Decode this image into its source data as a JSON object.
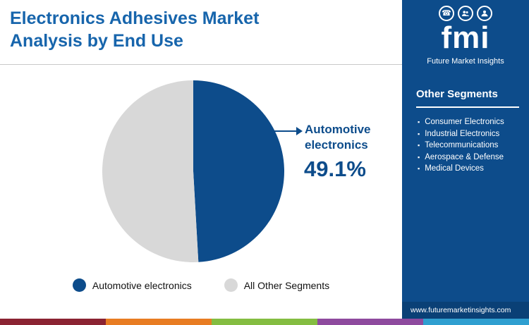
{
  "header": {
    "title": "Electronics Adhesives Market Analysis by End Use"
  },
  "chart_data": {
    "type": "pie",
    "title": "Electronics Adhesives Market Analysis by End Use",
    "slices": [
      {
        "label": "Automotive electronics",
        "value": 49.1,
        "color": "#0d4c8b"
      },
      {
        "label": "All Other Segments",
        "value": 50.9,
        "color": "#d8d8d8"
      }
    ],
    "start_angle_deg": -90,
    "legend_position": "bottom",
    "annotation": {
      "label": "Automotive electronics",
      "value_label": "49.1%"
    }
  },
  "callout": {
    "label": "Automotive electronics",
    "value": "49.1%"
  },
  "legend": [
    {
      "label": "Automotive electronics",
      "color": "#0d4c8b"
    },
    {
      "label": "All Other Segments",
      "color": "#d8d8d8"
    }
  ],
  "sidebar": {
    "logo": {
      "text": "fmi",
      "tagline": "Future Market Insights",
      "icons": [
        "phone-icon",
        "people-icon",
        "person-icon"
      ]
    },
    "section_title": "Other Segments",
    "items": [
      "Consumer Electronics",
      "Industrial Electronics",
      "Telecommunications",
      "Aerospace & Defense",
      "Medical Devices"
    ],
    "website": "www.futuremarketinsights.com",
    "background": "#0d4c8b"
  },
  "footer": {
    "colors": [
      "#8b2332",
      "#e87c22",
      "#84bd41",
      "#8e4a9e",
      "#2f9fd0"
    ]
  },
  "colors": {
    "title": "#1765ac",
    "accent": "#0d4c8b",
    "rule": "#c9c9c9"
  }
}
